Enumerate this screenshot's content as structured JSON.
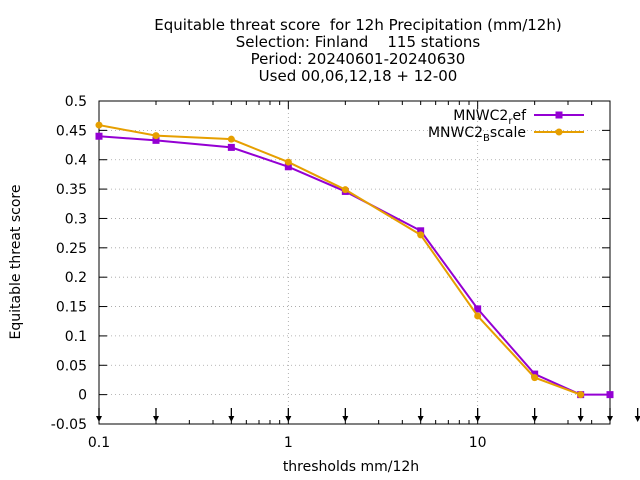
{
  "chart_data": {
    "type": "line",
    "title_lines": [
      "Equitable threat score  for 12h Precipitation (mm/12h)",
      "Selection: Finland    115 stations",
      "Period: 20240601-20240630",
      "Used 00,06,12,18 + 12-00"
    ],
    "xlabel": "thresholds mm/12h",
    "ylabel": "Equitable threat score",
    "x_scale": "log",
    "xlim": [
      0.1,
      50
    ],
    "ylim": [
      -0.05,
      0.5
    ],
    "x_ticks": [
      {
        "value": 0.1,
        "label": "0.1"
      },
      {
        "value": 1,
        "label": "1"
      },
      {
        "value": 10,
        "label": "10"
      }
    ],
    "y_ticks": [
      {
        "value": 0.5,
        "label": "0.5"
      },
      {
        "value": 0.45,
        "label": "0.45"
      },
      {
        "value": 0.4,
        "label": "0.4"
      },
      {
        "value": 0.35,
        "label": "0.35"
      },
      {
        "value": 0.3,
        "label": "0.3"
      },
      {
        "value": 0.25,
        "label": "0.25"
      },
      {
        "value": 0.2,
        "label": "0.2"
      },
      {
        "value": 0.15,
        "label": "0.15"
      },
      {
        "value": 0.1,
        "label": "0.1"
      },
      {
        "value": 0.05,
        "label": "0.05"
      },
      {
        "value": 0,
        "label": "0"
      },
      {
        "value": -0.05,
        "label": "-0.05"
      }
    ],
    "grid": true,
    "legend_position": "top-right",
    "threshold_markers": [
      0.1,
      0.2,
      0.5,
      1,
      2,
      5,
      10,
      20,
      35,
      50,
      70
    ],
    "x": [
      0.1,
      0.2,
      0.5,
      1,
      2,
      5,
      10,
      20,
      35,
      50
    ],
    "series": [
      {
        "name": "MNWC2_ref",
        "legend_main": "MNWC2",
        "legend_sub": "r",
        "legend_tail": "ef",
        "color": "#9400d3",
        "marker": "square",
        "values": [
          0.44,
          0.433,
          0.421,
          0.388,
          0.346,
          0.279,
          0.146,
          0.035,
          0.0,
          0.0
        ]
      },
      {
        "name": "MNWC2_Bscale",
        "legend_main": "MNWC2",
        "legend_sub": "B",
        "legend_tail": "scale",
        "color": "#e69f00",
        "marker": "circle",
        "values": [
          0.459,
          0.441,
          0.435,
          0.396,
          0.349,
          0.272,
          0.134,
          0.029,
          0.0,
          null
        ]
      }
    ]
  }
}
